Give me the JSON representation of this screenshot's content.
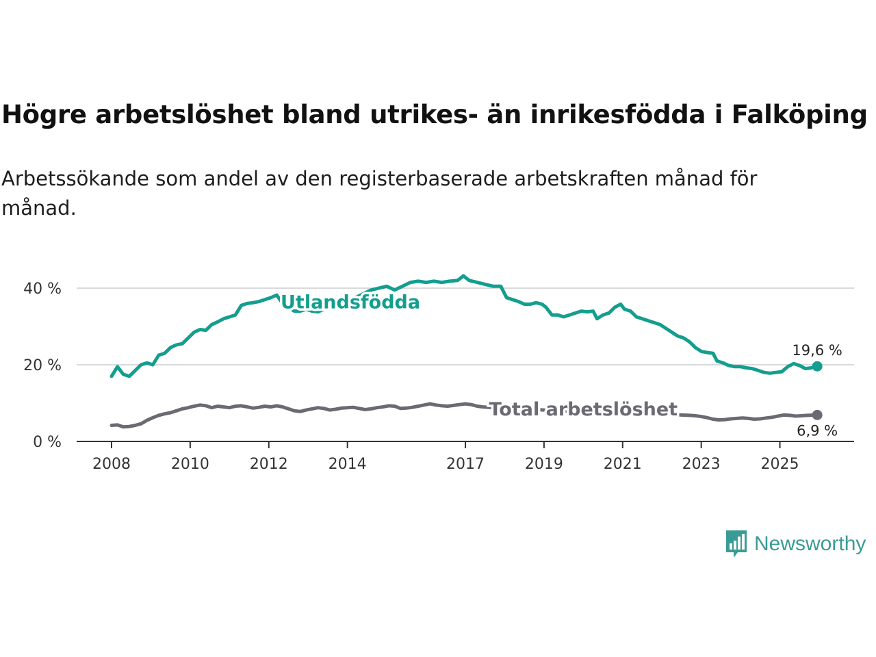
{
  "title": "Högre arbetslöshet bland utrikes- än inrikesfödda i Falköping",
  "subtitle": "Arbetssökande som andel av den registerbaserade arbetskraften månad för månad.",
  "brand": {
    "name": "Newsworthy"
  },
  "colors": {
    "foreign": "#139e8e",
    "total": "#6b6a72",
    "grid": "#d9d9d9",
    "axis": "#333333",
    "brand": "#3a9b94"
  },
  "chart_data": {
    "type": "line",
    "title": "Högre arbetslöshet bland utrikes- än inrikesfödda i Falköping",
    "xlabel": "",
    "ylabel": "",
    "xlim": [
      2008,
      2026
    ],
    "ylim": [
      0,
      45
    ],
    "y_ticks": [
      {
        "value": 0,
        "label": "0 %"
      },
      {
        "value": 20,
        "label": "20 %"
      },
      {
        "value": 40,
        "label": "40 %"
      }
    ],
    "x_ticks": [
      {
        "value": 2008,
        "label": "2008"
      },
      {
        "value": 2010,
        "label": "2010"
      },
      {
        "value": 2012,
        "label": "2012"
      },
      {
        "value": 2014,
        "label": "2014"
      },
      {
        "value": 2017,
        "label": "2017"
      },
      {
        "value": 2019,
        "label": "2019"
      },
      {
        "value": 2021,
        "label": "2021"
      },
      {
        "value": 2023,
        "label": "2023"
      },
      {
        "value": 2025,
        "label": "2025"
      }
    ],
    "series": [
      {
        "name": "Utlandsfödda",
        "color": "#139e8e",
        "end_label": "19,6 %",
        "points": [
          [
            2008.0,
            17.0
          ],
          [
            2008.15,
            19.5
          ],
          [
            2008.3,
            17.5
          ],
          [
            2008.45,
            17.0
          ],
          [
            2008.6,
            18.5
          ],
          [
            2008.75,
            20.0
          ],
          [
            2008.9,
            20.5
          ],
          [
            2009.05,
            20.0
          ],
          [
            2009.2,
            22.5
          ],
          [
            2009.35,
            23.0
          ],
          [
            2009.5,
            24.5
          ],
          [
            2009.65,
            25.2
          ],
          [
            2009.8,
            25.5
          ],
          [
            2009.95,
            27.0
          ],
          [
            2010.1,
            28.5
          ],
          [
            2010.25,
            29.2
          ],
          [
            2010.4,
            29.0
          ],
          [
            2010.55,
            30.5
          ],
          [
            2010.7,
            31.2
          ],
          [
            2010.85,
            32.0
          ],
          [
            2011.0,
            32.5
          ],
          [
            2011.15,
            33.0
          ],
          [
            2011.3,
            35.5
          ],
          [
            2011.45,
            36.0
          ],
          [
            2011.6,
            36.2
          ],
          [
            2011.75,
            36.5
          ],
          [
            2011.9,
            37.0
          ],
          [
            2012.05,
            37.5
          ],
          [
            2012.2,
            38.2
          ],
          [
            2012.35,
            36.0
          ],
          [
            2012.5,
            35.0
          ],
          [
            2012.65,
            34.0
          ],
          [
            2012.8,
            34.0
          ],
          [
            2012.95,
            34.5
          ],
          [
            2013.1,
            34.0
          ],
          [
            2013.25,
            33.8
          ],
          [
            2013.4,
            34.5
          ],
          [
            2013.55,
            35.0
          ],
          [
            2013.7,
            35.5
          ],
          [
            2013.85,
            36.0
          ],
          [
            2014.0,
            36.5
          ],
          [
            2014.2,
            37.5
          ],
          [
            2014.4,
            38.5
          ],
          [
            2014.6,
            39.5
          ],
          [
            2014.8,
            40.0
          ],
          [
            2015.0,
            40.5
          ],
          [
            2015.2,
            39.5
          ],
          [
            2015.4,
            40.5
          ],
          [
            2015.6,
            41.5
          ],
          [
            2015.8,
            41.8
          ],
          [
            2016.0,
            41.5
          ],
          [
            2016.2,
            41.8
          ],
          [
            2016.4,
            41.5
          ],
          [
            2016.6,
            41.8
          ],
          [
            2016.8,
            42.0
          ],
          [
            2016.95,
            43.2
          ],
          [
            2017.1,
            42.0
          ],
          [
            2017.3,
            41.5
          ],
          [
            2017.5,
            41.0
          ],
          [
            2017.7,
            40.5
          ],
          [
            2017.9,
            40.5
          ],
          [
            2018.05,
            37.5
          ],
          [
            2018.2,
            37.0
          ],
          [
            2018.35,
            36.5
          ],
          [
            2018.5,
            35.8
          ],
          [
            2018.65,
            35.8
          ],
          [
            2018.8,
            36.2
          ],
          [
            2018.95,
            35.8
          ],
          [
            2019.05,
            35.0
          ],
          [
            2019.2,
            33.0
          ],
          [
            2019.35,
            33.0
          ],
          [
            2019.5,
            32.5
          ],
          [
            2019.65,
            33.0
          ],
          [
            2019.8,
            33.5
          ],
          [
            2019.95,
            34.0
          ],
          [
            2020.1,
            33.8
          ],
          [
            2020.25,
            34.0
          ],
          [
            2020.35,
            32.0
          ],
          [
            2020.5,
            33.0
          ],
          [
            2020.65,
            33.5
          ],
          [
            2020.8,
            35.0
          ],
          [
            2020.95,
            35.8
          ],
          [
            2021.05,
            34.5
          ],
          [
            2021.2,
            34.0
          ],
          [
            2021.35,
            32.5
          ],
          [
            2021.5,
            32.0
          ],
          [
            2021.65,
            31.5
          ],
          [
            2021.8,
            31.0
          ],
          [
            2021.95,
            30.5
          ],
          [
            2022.1,
            29.5
          ],
          [
            2022.25,
            28.5
          ],
          [
            2022.4,
            27.5
          ],
          [
            2022.55,
            27.0
          ],
          [
            2022.7,
            26.0
          ],
          [
            2022.85,
            24.5
          ],
          [
            2023.0,
            23.5
          ],
          [
            2023.15,
            23.2
          ],
          [
            2023.3,
            23.0
          ],
          [
            2023.4,
            21.0
          ],
          [
            2023.55,
            20.5
          ],
          [
            2023.7,
            19.8
          ],
          [
            2023.85,
            19.5
          ],
          [
            2024.0,
            19.5
          ],
          [
            2024.15,
            19.2
          ],
          [
            2024.3,
            19.0
          ],
          [
            2024.45,
            18.5
          ],
          [
            2024.6,
            18.0
          ],
          [
            2024.75,
            17.8
          ],
          [
            2024.9,
            18.0
          ],
          [
            2025.05,
            18.2
          ],
          [
            2025.2,
            19.5
          ],
          [
            2025.35,
            20.3
          ],
          [
            2025.5,
            19.8
          ],
          [
            2025.65,
            19.0
          ],
          [
            2025.8,
            19.2
          ],
          [
            2025.95,
            19.6
          ]
        ]
      },
      {
        "name": "Total arbetslöshet",
        "color": "#6b6a72",
        "end_label": "6,9 %",
        "points": [
          [
            2008.0,
            4.2
          ],
          [
            2008.15,
            4.3
          ],
          [
            2008.3,
            3.8
          ],
          [
            2008.45,
            3.9
          ],
          [
            2008.6,
            4.2
          ],
          [
            2008.75,
            4.6
          ],
          [
            2008.9,
            5.5
          ],
          [
            2009.05,
            6.2
          ],
          [
            2009.2,
            6.8
          ],
          [
            2009.35,
            7.2
          ],
          [
            2009.5,
            7.5
          ],
          [
            2009.65,
            8.0
          ],
          [
            2009.8,
            8.5
          ],
          [
            2009.95,
            8.8
          ],
          [
            2010.1,
            9.2
          ],
          [
            2010.25,
            9.5
          ],
          [
            2010.4,
            9.3
          ],
          [
            2010.55,
            8.8
          ],
          [
            2010.7,
            9.2
          ],
          [
            2010.85,
            9.0
          ],
          [
            2011.0,
            8.8
          ],
          [
            2011.15,
            9.2
          ],
          [
            2011.3,
            9.3
          ],
          [
            2011.45,
            9.0
          ],
          [
            2011.6,
            8.7
          ],
          [
            2011.75,
            8.9
          ],
          [
            2011.9,
            9.2
          ],
          [
            2012.05,
            9.0
          ],
          [
            2012.2,
            9.3
          ],
          [
            2012.35,
            9.0
          ],
          [
            2012.5,
            8.5
          ],
          [
            2012.65,
            8.0
          ],
          [
            2012.8,
            7.8
          ],
          [
            2012.95,
            8.2
          ],
          [
            2013.1,
            8.5
          ],
          [
            2013.25,
            8.8
          ],
          [
            2013.4,
            8.6
          ],
          [
            2013.55,
            8.2
          ],
          [
            2013.7,
            8.4
          ],
          [
            2013.85,
            8.7
          ],
          [
            2014.0,
            8.8
          ],
          [
            2014.15,
            8.9
          ],
          [
            2014.3,
            8.6
          ],
          [
            2014.45,
            8.3
          ],
          [
            2014.6,
            8.5
          ],
          [
            2014.75,
            8.8
          ],
          [
            2014.9,
            9.0
          ],
          [
            2015.05,
            9.3
          ],
          [
            2015.2,
            9.2
          ],
          [
            2015.35,
            8.6
          ],
          [
            2015.5,
            8.7
          ],
          [
            2015.65,
            8.9
          ],
          [
            2015.8,
            9.2
          ],
          [
            2015.95,
            9.5
          ],
          [
            2016.1,
            9.8
          ],
          [
            2016.25,
            9.5
          ],
          [
            2016.4,
            9.3
          ],
          [
            2016.55,
            9.2
          ],
          [
            2016.7,
            9.4
          ],
          [
            2016.85,
            9.6
          ],
          [
            2017.0,
            9.8
          ],
          [
            2017.15,
            9.6
          ],
          [
            2017.3,
            9.2
          ],
          [
            2017.45,
            9.0
          ],
          [
            2017.6,
            8.9
          ],
          [
            2017.75,
            8.8
          ],
          [
            2017.9,
            8.7
          ],
          [
            2018.2,
            8.6
          ],
          [
            2018.6,
            8.4
          ],
          [
            2019.0,
            8.2
          ],
          [
            2019.5,
            8.0
          ],
          [
            2020.0,
            7.9
          ],
          [
            2020.5,
            8.3
          ],
          [
            2021.0,
            8.0
          ],
          [
            2021.5,
            7.6
          ],
          [
            2022.0,
            7.2
          ],
          [
            2022.25,
            7.0
          ],
          [
            2022.5,
            6.9
          ],
          [
            2022.7,
            6.8
          ],
          [
            2022.85,
            6.7
          ],
          [
            2023.0,
            6.5
          ],
          [
            2023.15,
            6.2
          ],
          [
            2023.3,
            5.8
          ],
          [
            2023.45,
            5.6
          ],
          [
            2023.6,
            5.7
          ],
          [
            2023.75,
            5.9
          ],
          [
            2023.9,
            6.0
          ],
          [
            2024.05,
            6.1
          ],
          [
            2024.2,
            6.0
          ],
          [
            2024.35,
            5.8
          ],
          [
            2024.5,
            5.9
          ],
          [
            2024.65,
            6.1
          ],
          [
            2024.8,
            6.3
          ],
          [
            2024.95,
            6.6
          ],
          [
            2025.1,
            6.9
          ],
          [
            2025.25,
            6.8
          ],
          [
            2025.4,
            6.6
          ],
          [
            2025.55,
            6.7
          ],
          [
            2025.7,
            6.8
          ],
          [
            2025.95,
            6.9
          ]
        ]
      }
    ]
  }
}
